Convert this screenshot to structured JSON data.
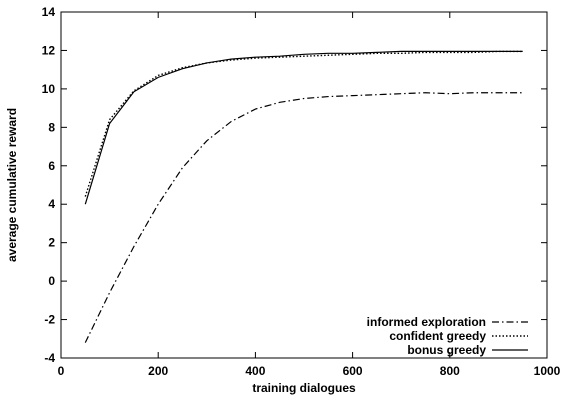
{
  "chart_data": {
    "type": "line",
    "title": "",
    "xlabel": "training dialogues",
    "ylabel": "average cumulative reward",
    "xlim": [
      0,
      1000
    ],
    "ylim": [
      -4,
      14
    ],
    "xticks": [
      0,
      200,
      400,
      600,
      800,
      1000
    ],
    "yticks": [
      -4,
      -2,
      0,
      2,
      4,
      6,
      8,
      10,
      12,
      14
    ],
    "xtick_labels": [
      "0",
      "200",
      "400",
      "600",
      "800",
      "1000"
    ],
    "ytick_labels": [
      "-4",
      "-2",
      "0",
      "2",
      "4",
      "6",
      "8",
      "10",
      "12",
      "14"
    ],
    "grid": false,
    "legend_position": "bottom-right",
    "series": [
      {
        "name": "informed exploration",
        "style": "dash-dot",
        "x": [
          50,
          100,
          150,
          200,
          250,
          300,
          350,
          400,
          450,
          500,
          550,
          600,
          650,
          700,
          750,
          800,
          850,
          900,
          950
        ],
        "y": [
          -3.2,
          -0.6,
          1.8,
          4.0,
          5.9,
          7.3,
          8.3,
          8.95,
          9.3,
          9.5,
          9.6,
          9.65,
          9.7,
          9.75,
          9.8,
          9.75,
          9.8,
          9.8,
          9.8
        ]
      },
      {
        "name": "confident greedy",
        "style": "dotted",
        "x": [
          50,
          100,
          150,
          200,
          250,
          300,
          350,
          400,
          450,
          500,
          550,
          600,
          650,
          700,
          750,
          800,
          850,
          900,
          950
        ],
        "y": [
          4.4,
          8.4,
          9.9,
          10.7,
          11.1,
          11.35,
          11.5,
          11.6,
          11.65,
          11.7,
          11.75,
          11.8,
          11.85,
          11.85,
          11.9,
          11.9,
          11.9,
          11.95,
          11.95
        ]
      },
      {
        "name": "bonus greedy",
        "style": "solid",
        "x": [
          50,
          100,
          150,
          200,
          250,
          300,
          350,
          400,
          450,
          500,
          550,
          600,
          650,
          700,
          750,
          800,
          850,
          900,
          950
        ],
        "y": [
          4.0,
          8.2,
          9.85,
          10.6,
          11.05,
          11.35,
          11.55,
          11.65,
          11.7,
          11.8,
          11.85,
          11.85,
          11.9,
          11.95,
          11.95,
          11.95,
          11.95,
          11.95,
          11.95
        ]
      }
    ]
  }
}
